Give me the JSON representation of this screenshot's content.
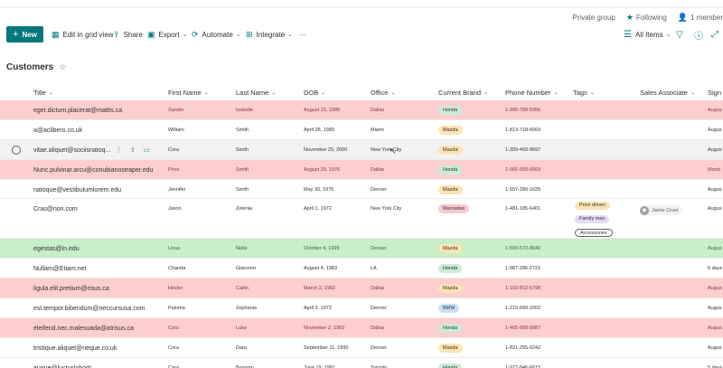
{
  "header": {
    "privacy": "Private group",
    "following": "Following",
    "members": "1 member"
  },
  "toolbar": {
    "new_label": "New",
    "grid_label": "Edit in grid view",
    "share_label": "Share",
    "export_label": "Export",
    "automate_label": "Automate",
    "integrate_label": "Integrate",
    "more_label": "···",
    "view_label": "All Items"
  },
  "list": {
    "title": "Customers"
  },
  "columns": [
    "Title",
    "First Name",
    "Last Name",
    "DOB",
    "Office",
    "Current Brand",
    "Phone Number",
    "Tags",
    "Sales Associate",
    "Sign"
  ],
  "rows": [
    {
      "title": "eget.dictum.placerat@mattis.ca",
      "first": "Xander",
      "last": "Isabelle",
      "dob": "August 15, 1988",
      "office": "Dallas",
      "brand": "Honda",
      "phone": "1-995-789-5956",
      "sign": "Augus"
    },
    {
      "title": "a@aclibero.co.uk",
      "first": "William",
      "last": "Smith",
      "dob": "April 28, 1989",
      "office": "Miami",
      "brand": "Mazda",
      "phone": "1-813-718-6669",
      "sign": "Augus"
    },
    {
      "title": "vitae.aliquet@sociisnatoq...",
      "first": "Cora",
      "last": "Smith",
      "dob": "November 25, 2000",
      "office": "New York City",
      "brand": "Mazda",
      "phone": "1-309-493-9697",
      "sign": "Augus"
    },
    {
      "title": "Nunc.pulvinar.arcu@conubianostraper.edu",
      "first": "Price",
      "last": "Smith",
      "dob": "August 29, 1976",
      "office": "Dallas",
      "brand": "Honda",
      "phone": "1-965-950-6669",
      "sign": "Mond"
    },
    {
      "title": "natoque@vestibulumlorem.edu",
      "first": "Jennifer",
      "last": "Smith",
      "dob": "May 30, 1976",
      "office": "Denver",
      "brand": "Mazda",
      "phone": "1-557-280-1625",
      "sign": "Augus"
    },
    {
      "title": "Cras@non.com",
      "first": "Jason",
      "last": "Zelenia",
      "dob": "April 1, 1972",
      "office": "New York City",
      "brand": "Mercedes",
      "phone": "1-481-185-6401",
      "sign": "Augus"
    },
    {
      "title": "egestas@in.edu",
      "first": "Linus",
      "last": "Nelle",
      "dob": "October 4, 1999",
      "office": "Denver",
      "brand": "Mazda",
      "phone": "1-500-572-8640",
      "sign": "Augus"
    },
    {
      "title": "Nullam@Etiam.net",
      "first": "Chanda",
      "last": "Giacomo",
      "dob": "August 4, 1983",
      "office": "LA",
      "brand": "Honda",
      "phone": "1-987-286-2721",
      "sign": "6 days"
    },
    {
      "title": "ligula.elit.pretium@risus.ca",
      "first": "Hector",
      "last": "Cailin",
      "dob": "March 2, 1982",
      "office": "Dallas",
      "brand": "Mazda",
      "phone": "1-102-812-5798",
      "sign": "Augus"
    },
    {
      "title": "est.tempor.bibendum@neccursusa.com",
      "first": "Paloma",
      "last": "Zephania",
      "dob": "April 3, 1972",
      "office": "Denver",
      "brand": "BMW",
      "phone": "1-215-699-2002",
      "sign": "Augus"
    },
    {
      "title": "eleifend.nec.malesuada@atrisus.ca",
      "first": "Cora",
      "last": "Luke",
      "dob": "November 2, 1983",
      "office": "Dallas",
      "brand": "Honda",
      "phone": "1-405-998-9987",
      "sign": "Augus"
    },
    {
      "title": "tristique.aliquet@neque.co.uk",
      "first": "Cora",
      "last": "Dara",
      "dob": "September 11, 1990",
      "office": "Denver",
      "brand": "Mazda",
      "phone": "1-821-255-0242",
      "sign": "Augus"
    },
    {
      "title": "augue@luctusloborti...",
      "first": "Cora",
      "last": "Bossom",
      "dob": "June 19, 1981",
      "office": "Toronto",
      "brand": "Honda",
      "phone": "1-977-846-6615",
      "sign": "5 days"
    }
  ],
  "tags_row6": [
    "Price driven",
    "Family man",
    "Accessories"
  ],
  "associate_row6": "Jamie Crust",
  "colors": {
    "accent": "#03787c",
    "red_row": "#fdcece",
    "green_row": "#c8efc8",
    "honda": "#c9ecd7",
    "mazda": "#fde3b3",
    "mercedes": "#f8c9d0",
    "bmw": "#c7e0f4",
    "price_driven": "#fde3b3",
    "family_man": "#e4dbf6"
  }
}
